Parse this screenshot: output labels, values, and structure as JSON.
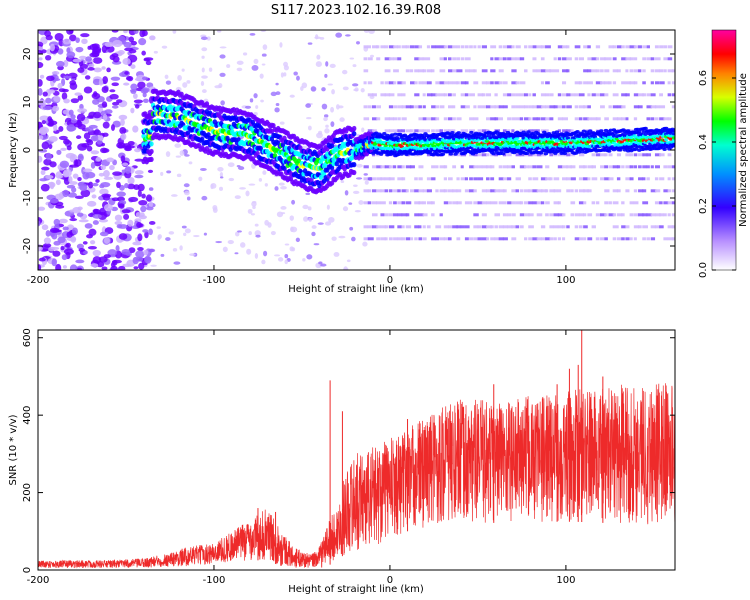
{
  "figure": {
    "title": "S117.2023.102.16.39.R08"
  },
  "chart_data": [
    {
      "type": "heatmap",
      "title": "S117.2023.102.16.39.R08",
      "xlabel": "Height of straight line (km)",
      "ylabel": "Frequency (Hz)",
      "xlim": [
        -200,
        162
      ],
      "ylim": [
        -25,
        25
      ],
      "x_ticks": [
        "-200",
        "-100",
        "0",
        "100"
      ],
      "y_ticks": [
        "20",
        "10",
        "0",
        "-10",
        "-20"
      ],
      "colorbar": {
        "label": "Normalized spectral amplitude",
        "range": [
          0,
          0.75
        ],
        "ticks": [
          "0.0",
          "0.2",
          "0.4",
          "0.6"
        ]
      },
      "colormap": [
        "#ffffff",
        "#6a00ff",
        "#0000ff",
        "#00ffff",
        "#00ff00",
        "#ffff00",
        "#ff0000",
        "#ff00ff"
      ],
      "ridge": {
        "description_points_x": [
          -135,
          -120,
          -100,
          -80,
          -65,
          -50,
          -40,
          -30,
          -20,
          -10,
          0,
          50,
          100,
          162
        ],
        "description_points_freq": [
          7.5,
          7,
          4,
          3,
          0,
          -3,
          -4,
          -1,
          0,
          1.5,
          1,
          1.5,
          1.5,
          2.5
        ]
      },
      "harmonic_lines_freq": [
        21.5,
        19,
        16.5,
        14,
        11.5,
        9,
        6.5,
        4,
        -1,
        -3.5,
        -6,
        -8.5,
        -11,
        -13.5,
        -16,
        -18.5
      ]
    },
    {
      "type": "area",
      "xlabel": "Height of straight line (km)",
      "ylabel": "SNR (10 * v/v)",
      "xlim": [
        -200,
        162
      ],
      "ylim": [
        0,
        620
      ],
      "x_ticks": [
        "-200",
        "-100",
        "0",
        "100"
      ],
      "y_ticks": [
        "0",
        "200",
        "400",
        "600"
      ],
      "series_color": "#ee2a2a",
      "envelope": {
        "x": [
          -200,
          -160,
          -140,
          -125,
          -115,
          -100,
          -90,
          -80,
          -70,
          -62,
          -55,
          -45,
          -40,
          -35,
          -30,
          -25,
          -20,
          -15,
          -10,
          -5,
          0,
          10,
          20,
          30,
          40,
          50,
          60,
          70,
          80,
          90,
          100,
          110,
          120,
          130,
          140,
          150,
          162
        ],
        "lower": [
          5,
          5,
          5,
          8,
          10,
          15,
          20,
          25,
          25,
          10,
          5,
          5,
          5,
          10,
          30,
          40,
          50,
          55,
          60,
          70,
          80,
          100,
          110,
          115,
          118,
          120,
          122,
          123,
          122,
          124,
          125,
          124,
          122,
          120,
          118,
          117,
          115
        ],
        "upper": [
          25,
          25,
          30,
          45,
          60,
          70,
          100,
          130,
          160,
          110,
          60,
          40,
          60,
          130,
          160,
          260,
          300,
          310,
          320,
          330,
          340,
          370,
          400,
          430,
          440,
          440,
          445,
          445,
          450,
          455,
          460,
          470,
          470,
          480,
          480,
          490,
          490
        ]
      },
      "spikes": [
        {
          "x": -75,
          "y": 160
        },
        {
          "x": -65,
          "y": 150
        },
        {
          "x": -34,
          "y": 490
        },
        {
          "x": -27,
          "y": 410
        },
        {
          "x": 10,
          "y": 390
        },
        {
          "x": 59,
          "y": 480
        },
        {
          "x": 95,
          "y": 480
        },
        {
          "x": 102,
          "y": 520
        },
        {
          "x": 107,
          "y": 530
        },
        {
          "x": 109,
          "y": 630
        },
        {
          "x": 121,
          "y": 500
        }
      ]
    }
  ]
}
